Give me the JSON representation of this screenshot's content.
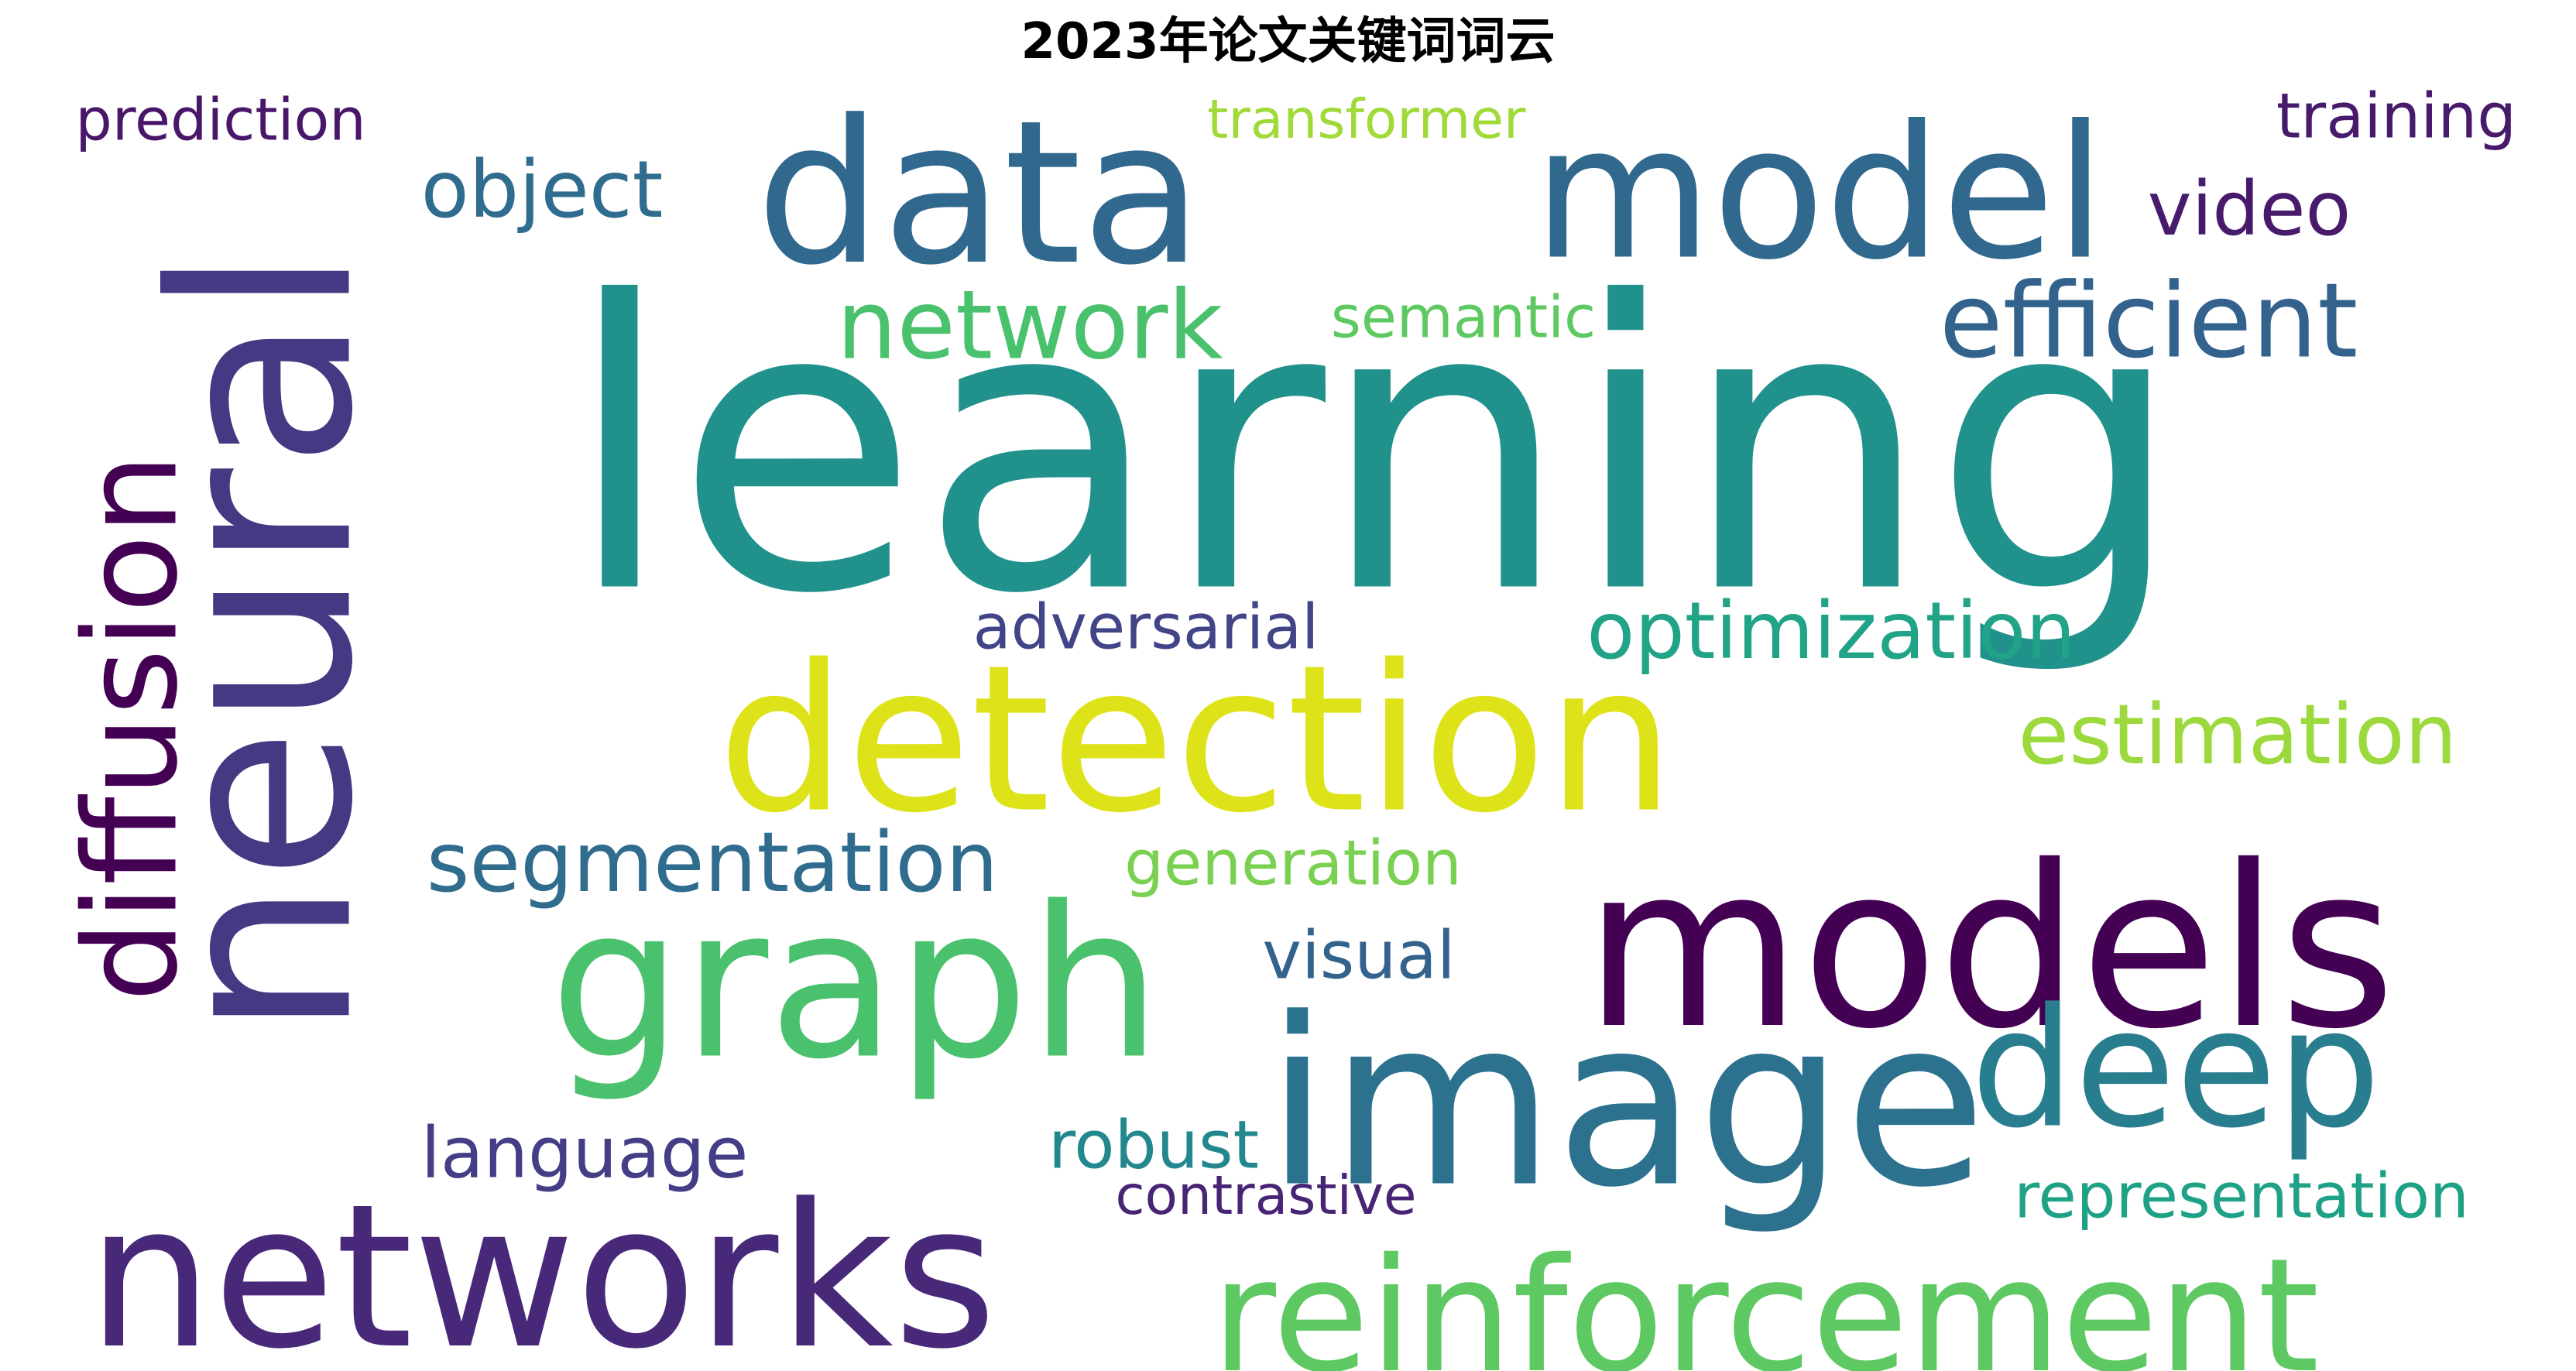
{
  "chart_data": {
    "type": "wordcloud",
    "title": "2023年论文关键词词云",
    "colormap": "viridis",
    "words": [
      {
        "text": "learning",
        "color": "#21918c"
      },
      {
        "text": "neural",
        "color": "#443983"
      },
      {
        "text": "data",
        "color": "#31688e"
      },
      {
        "text": "model",
        "color": "#31688e"
      },
      {
        "text": "models",
        "color": "#440154"
      },
      {
        "text": "detection",
        "color": "#dde318"
      },
      {
        "text": "image",
        "color": "#2c728e"
      },
      {
        "text": "graph",
        "color": "#4ac16d"
      },
      {
        "text": "networks",
        "color": "#482878"
      },
      {
        "text": "reinforcement",
        "color": "#5ec962"
      },
      {
        "text": "diffusion",
        "color": "#440154"
      },
      {
        "text": "deep",
        "color": "#287d8e"
      },
      {
        "text": "network",
        "color": "#4ac16d"
      },
      {
        "text": "efficient",
        "color": "#33638d"
      },
      {
        "text": "optimization",
        "color": "#20a386"
      },
      {
        "text": "estimation",
        "color": "#9bd93c"
      },
      {
        "text": "segmentation",
        "color": "#2f6c8e"
      },
      {
        "text": "object",
        "color": "#2f6c8e"
      },
      {
        "text": "video",
        "color": "#481a6c"
      },
      {
        "text": "language",
        "color": "#433e85"
      },
      {
        "text": "adversarial",
        "color": "#414487"
      },
      {
        "text": "transformer",
        "color": "#a0da39"
      },
      {
        "text": "training",
        "color": "#481a6c"
      },
      {
        "text": "prediction",
        "color": "#481769"
      },
      {
        "text": "semantic",
        "color": "#5ec962"
      },
      {
        "text": "generation",
        "color": "#7ad151"
      },
      {
        "text": "visual",
        "color": "#33638d"
      },
      {
        "text": "robust",
        "color": "#23888e"
      },
      {
        "text": "contrastive",
        "color": "#482475"
      },
      {
        "text": "representation",
        "color": "#1fa187"
      }
    ]
  }
}
